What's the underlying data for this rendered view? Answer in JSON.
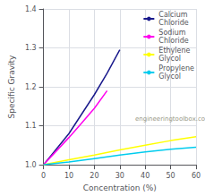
{
  "chart_data": {
    "type": "line",
    "xlabel": "Concentration (%)",
    "ylabel": "Specific Gravity",
    "xlim": [
      0,
      60
    ],
    "ylim": [
      1.0,
      1.4
    ],
    "xticks": [
      0,
      10,
      20,
      30,
      40,
      50,
      60
    ],
    "yticks": [
      {
        "value": 1.0,
        "label": "1.0"
      },
      1.1,
      1.2,
      1.3,
      1.4
    ],
    "grid": true,
    "legend": "upper right",
    "annotations": [
      "engineeringtoolbox.com"
    ],
    "series": [
      {
        "name": "Calcium\nChloride",
        "color": "#1a1a8c",
        "x": [
          0,
          5,
          10,
          15,
          20,
          25,
          30
        ],
        "values": [
          1.0,
          1.04,
          1.08,
          1.13,
          1.18,
          1.235,
          1.295
        ]
      },
      {
        "name": "Sodium\nChloride",
        "color": "#ff00ee",
        "x": [
          0,
          5,
          10,
          15,
          20,
          25
        ],
        "values": [
          1.0,
          1.035,
          1.07,
          1.107,
          1.145,
          1.19
        ]
      },
      {
        "name": "Ethylene\nGlycol",
        "color": "#ffff00",
        "x": [
          0,
          10,
          20,
          30,
          40,
          50,
          60
        ],
        "values": [
          1.0,
          1.013,
          1.025,
          1.038,
          1.05,
          1.062,
          1.072
        ]
      },
      {
        "name": "Propylene\nGlycol",
        "color": "#00ccee",
        "x": [
          0,
          10,
          20,
          30,
          40,
          50,
          60
        ],
        "values": [
          1.0,
          1.007,
          1.016,
          1.025,
          1.033,
          1.04,
          1.045
        ]
      }
    ]
  }
}
